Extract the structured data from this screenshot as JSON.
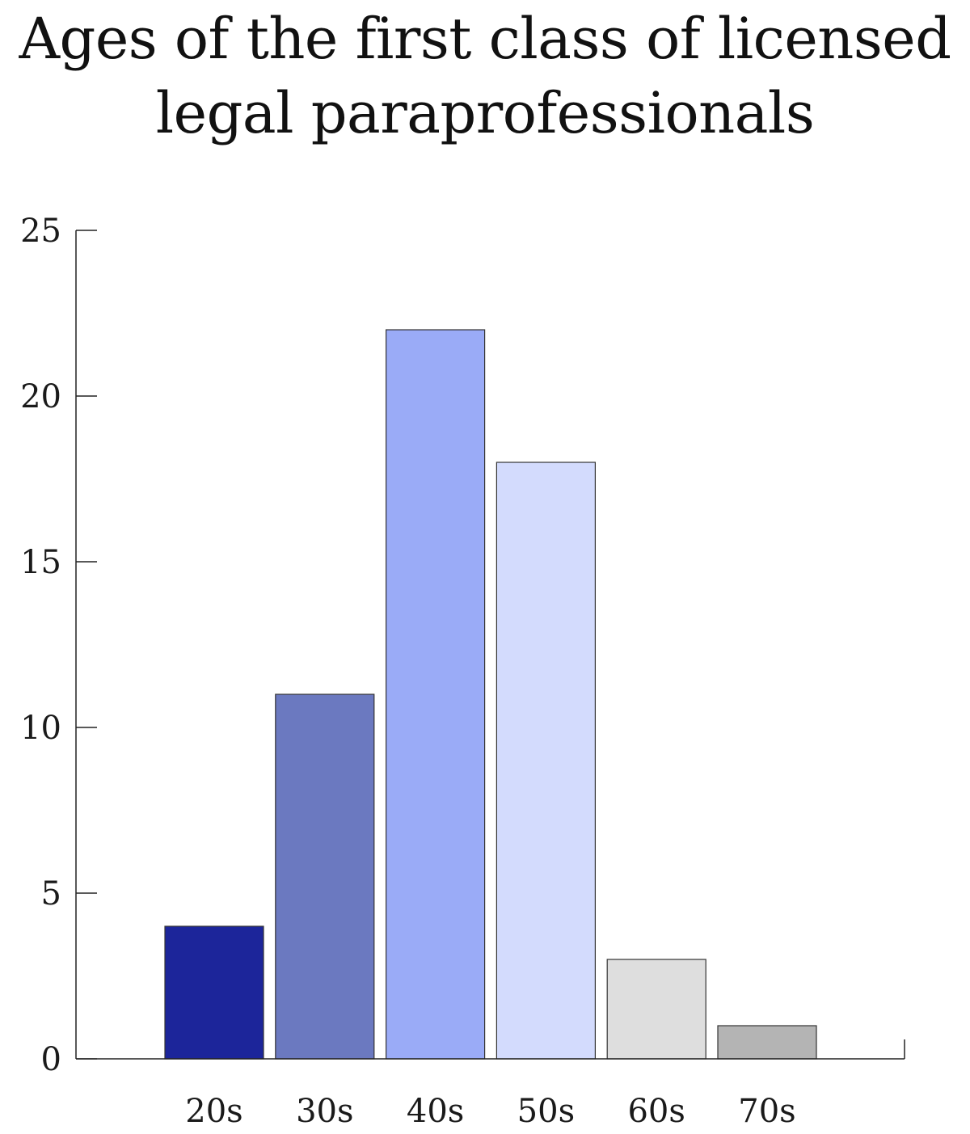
{
  "chart_data": {
    "type": "bar",
    "title_lines": [
      "Ages of the first class of licensed",
      "legal paraprofessionals"
    ],
    "categories": [
      "20s",
      "30s",
      "40s",
      "50s",
      "60s",
      "70s"
    ],
    "values": [
      4,
      11,
      22,
      18,
      3,
      1
    ],
    "colors": [
      "#1c259a",
      "#6b79c0",
      "#9aabf7",
      "#d3dbfd",
      "#dedede",
      "#b4b4b4"
    ],
    "ylim": [
      0,
      25
    ],
    "yticks": [
      0,
      5,
      10,
      15,
      20,
      25
    ],
    "xlabel": "",
    "ylabel": "",
    "grid": false,
    "legend": "none"
  }
}
